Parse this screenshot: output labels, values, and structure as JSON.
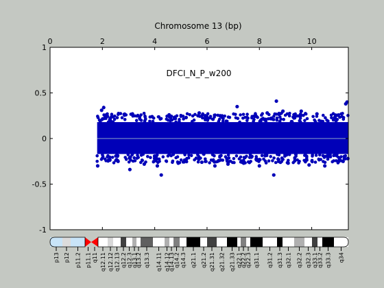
{
  "chart_data": {
    "type": "scatter",
    "title": "Chromosome 13 (bp)",
    "annotation": "DFCI_N_P_w200",
    "xlabel": "Chromosome 13 (bp)",
    "ylabel": "",
    "x_axis_position": "top",
    "xlim": [
      0,
      11.4
    ],
    "ylim": [
      -1,
      1
    ],
    "x_ticks": [
      0,
      2,
      4,
      6,
      8,
      10
    ],
    "y_ticks": [
      -1,
      -0.5,
      0,
      0.5,
      1
    ],
    "x_tick_labels": [
      "0",
      "2",
      "4",
      "6",
      "8",
      "10"
    ],
    "y_tick_labels": [
      "-1",
      "-0.5",
      "0",
      "0.5",
      "1"
    ],
    "grid": false,
    "legend": "none",
    "marker_color": "#0000b8",
    "baseline_color": "#8ea6c8",
    "series": [
      {
        "data_extent_x": [
          1.8,
          11.4
        ],
        "core_band_y": [
          -0.17,
          0.18
        ],
        "points": [
          [
            1.97,
            0.31
          ],
          [
            2.05,
            0.34
          ],
          [
            1.82,
            -0.3
          ],
          [
            2.3,
            0.22
          ],
          [
            2.6,
            -0.25
          ],
          [
            2.85,
            0.26
          ],
          [
            3.05,
            -0.34
          ],
          [
            3.15,
            0.27
          ],
          [
            3.6,
            -0.28
          ],
          [
            3.9,
            0.24
          ],
          [
            4.1,
            -0.3
          ],
          [
            4.25,
            -0.4
          ],
          [
            4.55,
            0.26
          ],
          [
            4.9,
            -0.27
          ],
          [
            5.2,
            0.23
          ],
          [
            5.7,
            0.28
          ],
          [
            5.8,
            -0.26
          ],
          [
            6.3,
            -0.3
          ],
          [
            6.5,
            0.25
          ],
          [
            6.8,
            -0.28
          ],
          [
            7.15,
            0.35
          ],
          [
            7.4,
            -0.27
          ],
          [
            7.85,
            0.25
          ],
          [
            8.0,
            -0.3
          ],
          [
            8.3,
            0.28
          ],
          [
            8.55,
            -0.4
          ],
          [
            8.65,
            0.41
          ],
          [
            8.9,
            0.3
          ],
          [
            9.1,
            -0.27
          ],
          [
            9.6,
            0.3
          ],
          [
            9.9,
            -0.29
          ],
          [
            10.2,
            0.27
          ],
          [
            10.5,
            -0.3
          ],
          [
            10.9,
            0.24
          ],
          [
            11.2,
            -0.25
          ],
          [
            11.3,
            0.38
          ],
          [
            11.35,
            0.4
          ],
          [
            11.38,
            -0.22
          ]
        ]
      }
    ]
  },
  "ideogram": {
    "bands": [
      "p13",
      "p12",
      "p11.2",
      "p11.1",
      "q11",
      "q12.11",
      "q12.12",
      "q12.13",
      "q12.2",
      "q12.3",
      "q13.1",
      "q13.2",
      "q13.3",
      "q14.11",
      "q14.12",
      "q14.13",
      "q14.2",
      "q14.3",
      "q21.1",
      "q21.2",
      "q21.31",
      "q21.32",
      "q21.33",
      "q22.1",
      "q22.2",
      "q22.3",
      "q31.1",
      "q31.2",
      "q31.3",
      "q32.1",
      "q32.2",
      "q32.3",
      "q33.1",
      "q33.2",
      "q33.3",
      "q34"
    ],
    "stain_colors": [
      "#c8e4f8",
      "#dcdcdc",
      "#c8e4f8",
      "#ff0000",
      "#ff0000",
      "#ffffff",
      "#d8d8d8",
      "#ffffff",
      "#404040",
      "#ffffff",
      "#b0b0b0",
      "#ffffff",
      "#606060",
      "#ffffff",
      "#b0b0b0",
      "#ffffff",
      "#808080",
      "#ffffff",
      "#000000",
      "#ffffff",
      "#404040",
      "#ffffff",
      "#000000",
      "#ffffff",
      "#808080",
      "#ffffff",
      "#000000",
      "#ffffff",
      "#000000",
      "#ffffff",
      "#b0b0b0",
      "#ffffff",
      "#404040",
      "#ffffff",
      "#000000",
      "#ffffff"
    ]
  }
}
